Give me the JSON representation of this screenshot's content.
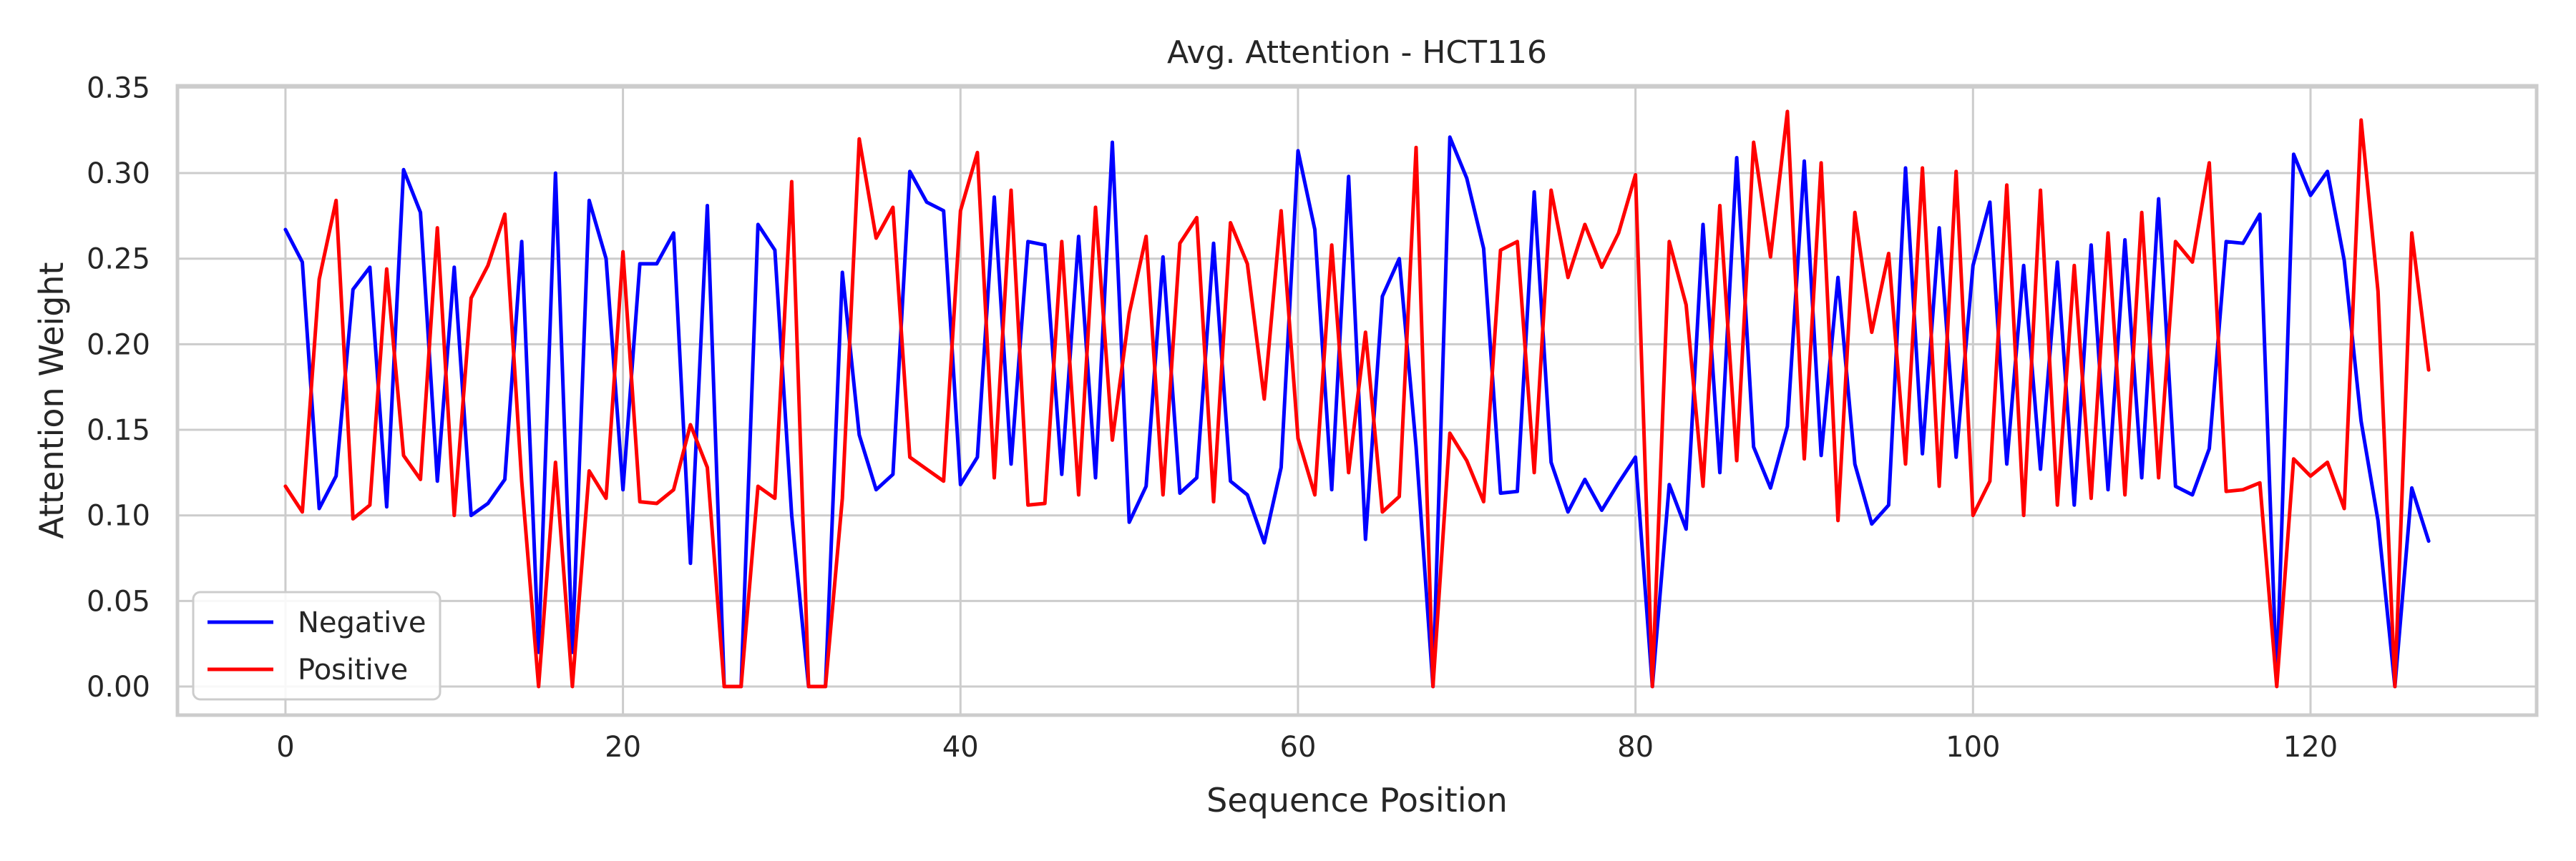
{
  "chart_data": {
    "type": "line",
    "title": "Avg. Attention - HCT116",
    "xlabel": "Sequence Position",
    "ylabel": "Attention Weight",
    "xlim": [
      -6.4,
      133.4
    ],
    "ylim": [
      -0.0167,
      0.351
    ],
    "xticks": [
      0,
      20,
      40,
      60,
      80,
      100,
      120
    ],
    "yticks": [
      0.0,
      0.05,
      0.1,
      0.15,
      0.2,
      0.25,
      0.3,
      0.35
    ],
    "ytick_labels": [
      "0.00",
      "0.05",
      "0.10",
      "0.15",
      "0.20",
      "0.25",
      "0.30",
      "0.35"
    ],
    "grid": true,
    "legend_position": "lower-left",
    "x": [
      0,
      1,
      2,
      3,
      4,
      5,
      6,
      7,
      8,
      9,
      10,
      11,
      12,
      13,
      14,
      15,
      16,
      17,
      18,
      19,
      20,
      21,
      22,
      23,
      24,
      25,
      26,
      27,
      28,
      29,
      30,
      31,
      32,
      33,
      34,
      35,
      36,
      37,
      38,
      39,
      40,
      41,
      42,
      43,
      44,
      45,
      46,
      47,
      48,
      49,
      50,
      51,
      52,
      53,
      54,
      55,
      56,
      57,
      58,
      59,
      60,
      61,
      62,
      63,
      64,
      65,
      66,
      67,
      68,
      69,
      70,
      71,
      72,
      73,
      74,
      75,
      76,
      77,
      78,
      79,
      80,
      81,
      82,
      83,
      84,
      85,
      86,
      87,
      88,
      89,
      90,
      91,
      92,
      93,
      94,
      95,
      96,
      97,
      98,
      99,
      100,
      101,
      102,
      103,
      104,
      105,
      106,
      107,
      108,
      109,
      110,
      111,
      112,
      113,
      114,
      115,
      116,
      117,
      118,
      119,
      120,
      121,
      122,
      123,
      124,
      125,
      126,
      127
    ],
    "series": [
      {
        "name": "Negative",
        "color": "#0000ff",
        "values": [
          0.267,
          0.248,
          0.104,
          0.123,
          0.232,
          0.245,
          0.105,
          0.302,
          0.277,
          0.12,
          0.245,
          0.1,
          0.107,
          0.121,
          0.26,
          0.02,
          0.3,
          0.02,
          0.284,
          0.25,
          0.115,
          0.247,
          0.247,
          0.265,
          0.072,
          0.281,
          0.0,
          0.0,
          0.27,
          0.255,
          0.1,
          0.0,
          0.0,
          0.242,
          0.147,
          0.115,
          0.124,
          0.301,
          0.283,
          0.278,
          0.118,
          0.134,
          0.286,
          0.13,
          0.26,
          0.258,
          0.124,
          0.263,
          0.122,
          0.318,
          0.096,
          0.117,
          0.251,
          0.113,
          0.122,
          0.259,
          0.12,
          0.112,
          0.084,
          0.128,
          0.313,
          0.267,
          0.115,
          0.298,
          0.086,
          0.228,
          0.25,
          0.14,
          0.0,
          0.321,
          0.297,
          0.256,
          0.113,
          0.114,
          0.289,
          0.131,
          0.102,
          0.121,
          0.103,
          0.119,
          0.134,
          0.0,
          0.118,
          0.092,
          0.27,
          0.125,
          0.309,
          0.14,
          0.116,
          0.152,
          0.307,
          0.135,
          0.239,
          0.13,
          0.095,
          0.106,
          0.303,
          0.136,
          0.268,
          0.134,
          0.246,
          0.283,
          0.13,
          0.246,
          0.127,
          0.248,
          0.106,
          0.258,
          0.115,
          0.261,
          0.122,
          0.285,
          0.117,
          0.112,
          0.139,
          0.26,
          0.259,
          0.276,
          0.002,
          0.311,
          0.287,
          0.301,
          0.249,
          0.155,
          0.097,
          0.0,
          0.116,
          0.085
        ]
      },
      {
        "name": "Positive",
        "color": "#ff0000",
        "values": [
          0.117,
          0.102,
          0.238,
          0.284,
          0.098,
          0.106,
          0.244,
          0.135,
          0.121,
          0.268,
          0.1,
          0.227,
          0.246,
          0.276,
          0.12,
          0.0,
          0.131,
          0.0,
          0.126,
          0.11,
          0.254,
          0.108,
          0.107,
          0.115,
          0.153,
          0.128,
          0.0,
          0.0,
          0.117,
          0.11,
          0.295,
          0.0,
          0.0,
          0.11,
          0.32,
          0.262,
          0.28,
          0.134,
          0.127,
          0.12,
          0.278,
          0.312,
          0.122,
          0.29,
          0.106,
          0.107,
          0.26,
          0.112,
          0.28,
          0.144,
          0.218,
          0.263,
          0.112,
          0.259,
          0.274,
          0.108,
          0.271,
          0.247,
          0.168,
          0.278,
          0.145,
          0.112,
          0.258,
          0.125,
          0.207,
          0.102,
          0.111,
          0.315,
          0.0,
          0.148,
          0.132,
          0.108,
          0.255,
          0.26,
          0.125,
          0.29,
          0.239,
          0.27,
          0.245,
          0.265,
          0.299,
          0.0,
          0.26,
          0.223,
          0.117,
          0.281,
          0.132,
          0.318,
          0.251,
          0.336,
          0.133,
          0.306,
          0.097,
          0.277,
          0.207,
          0.253,
          0.13,
          0.303,
          0.117,
          0.301,
          0.1,
          0.12,
          0.293,
          0.1,
          0.29,
          0.106,
          0.246,
          0.11,
          0.265,
          0.112,
          0.277,
          0.122,
          0.26,
          0.248,
          0.306,
          0.114,
          0.115,
          0.119,
          0.0,
          0.133,
          0.123,
          0.131,
          0.104,
          0.331,
          0.231,
          0.0,
          0.265,
          0.185
        ]
      }
    ]
  }
}
